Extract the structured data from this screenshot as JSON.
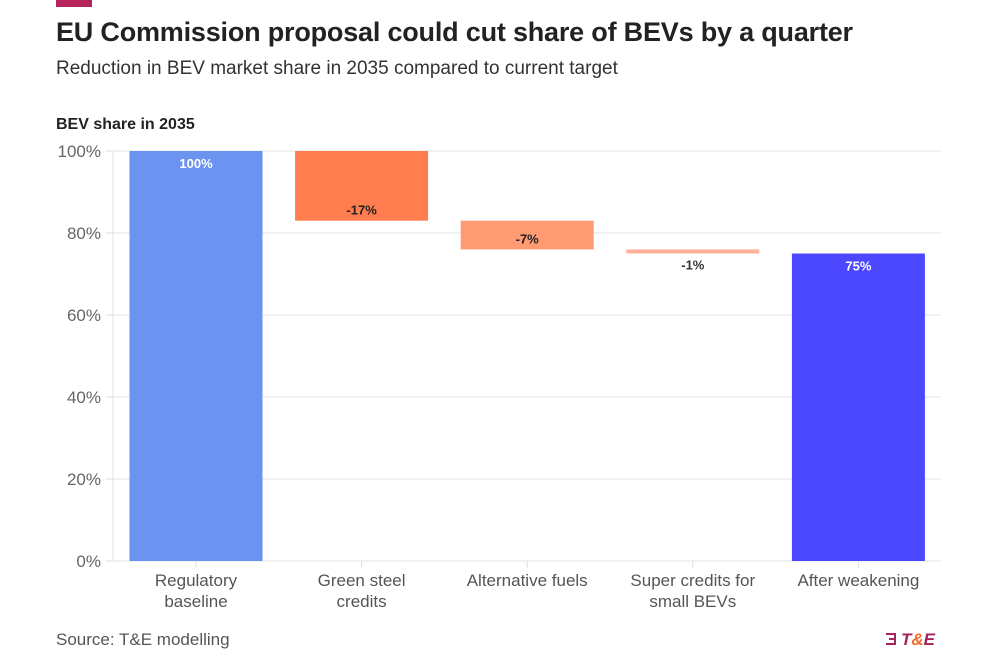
{
  "header": {
    "title": "EU Commission proposal could cut share of BEVs by a quarter",
    "subtitle": "Reduction in BEV market share in 2035 compared to current target"
  },
  "footer": {
    "source": "Source: T&E modelling",
    "logo_text": "T&E"
  },
  "colors": {
    "accent": "#b5245b",
    "baseline": "#6b93f0",
    "green_steel": "#ff7d4f",
    "alt_fuels": "#ff9a72",
    "super_credits": "#ffb299",
    "after": "#4c48ff",
    "logo_primary": "#a4245c",
    "logo_amp": "#f26a2e"
  },
  "chart_data": {
    "type": "waterfall",
    "title": "EU Commission proposal could cut share of BEVs by a quarter",
    "subtitle": "Reduction in BEV market share in 2035 compared to current target",
    "ylabel": "BEV share in 2035",
    "xlabel": "",
    "ylim": [
      0,
      100
    ],
    "yticks": [
      0,
      20,
      40,
      60,
      80,
      100
    ],
    "ytick_labels": [
      "0%",
      "20%",
      "40%",
      "60%",
      "80%",
      "100%"
    ],
    "grid": true,
    "categories": [
      [
        "Regulatory",
        "baseline"
      ],
      [
        "Green steel",
        "credits"
      ],
      [
        "Alternative fuels"
      ],
      [
        "Super credits for",
        "small BEVs"
      ],
      [
        "After weakening"
      ]
    ],
    "bars": [
      {
        "start": 0,
        "end": 100,
        "value": 100,
        "label": "100%",
        "color_key": "baseline",
        "kind": "total"
      },
      {
        "start": 100,
        "end": 83,
        "value": -17,
        "label": "-17%",
        "color_key": "green_steel",
        "kind": "delta"
      },
      {
        "start": 83,
        "end": 76,
        "value": -7,
        "label": "-7%",
        "color_key": "alt_fuels",
        "kind": "delta"
      },
      {
        "start": 76,
        "end": 75,
        "value": -1,
        "label": "-1%",
        "color_key": "super_credits",
        "kind": "delta"
      },
      {
        "start": 0,
        "end": 75,
        "value": 75,
        "label": "75%",
        "color_key": "after",
        "kind": "total"
      }
    ]
  }
}
